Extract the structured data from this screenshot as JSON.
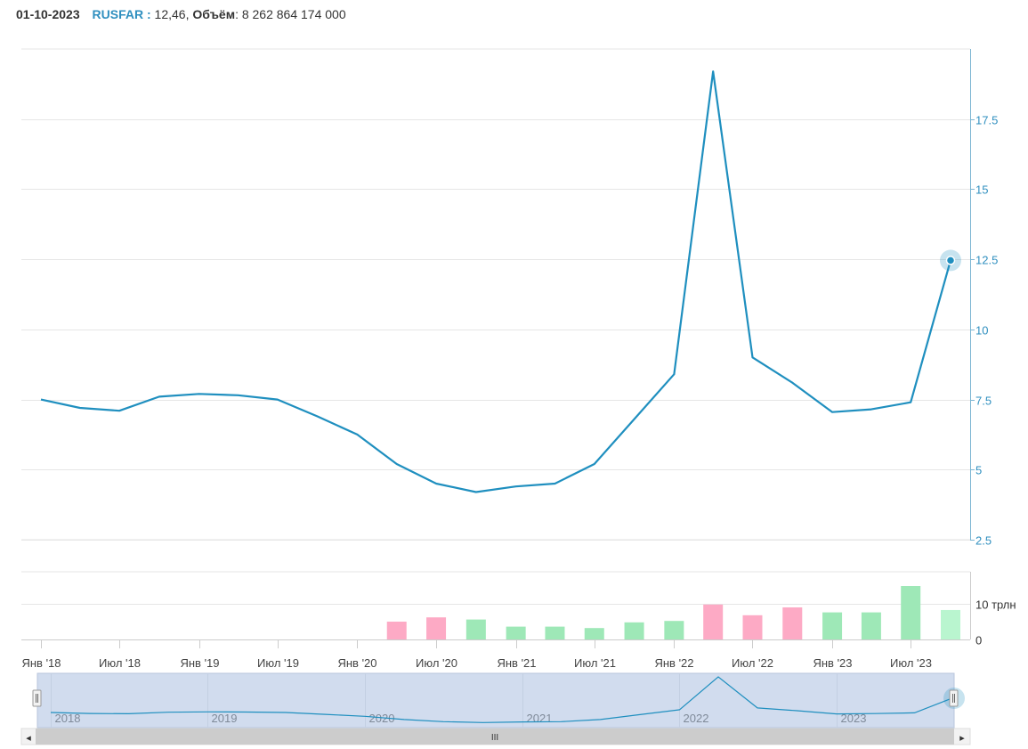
{
  "header": {
    "date": "01-10-2023",
    "ticker": "RUSFAR :",
    "value": "12,46,",
    "volume_label": "Объём",
    "volume_value": ": 8 262 864 174 000"
  },
  "colors": {
    "line": "#1f8fbf",
    "vol_up": "#9ee8b7",
    "vol_down": "#fdaac5",
    "vol_last": "#b9f5cf",
    "navigator_fill": "#d1dcee"
  },
  "chart_data": [
    {
      "type": "line",
      "name": "price",
      "x": [
        "2018-01",
        "2018-04",
        "2018-07",
        "2018-10",
        "2019-01",
        "2019-04",
        "2019-07",
        "2019-10",
        "2020-01",
        "2020-04",
        "2020-07",
        "2020-10",
        "2021-01",
        "2021-04",
        "2021-07",
        "2021-10",
        "2022-01",
        "2022-04",
        "2022-07",
        "2022-10",
        "2023-01",
        "2023-04",
        "2023-07",
        "2023-10"
      ],
      "values": [
        7.5,
        7.2,
        7.1,
        7.6,
        7.7,
        7.65,
        7.5,
        6.9,
        6.25,
        5.2,
        4.5,
        4.2,
        4.4,
        4.5,
        5.2,
        6.8,
        8.4,
        19.2,
        9.0,
        8.1,
        7.05,
        7.15,
        7.4,
        12.46
      ],
      "ylim": [
        2.5,
        20
      ],
      "yticks": [
        "2.5",
        "5",
        "7.5",
        "10",
        "12.5",
        "15",
        "17.5"
      ],
      "ytick_values": [
        2.5,
        5,
        7.5,
        10,
        12.5,
        15,
        17.5
      ]
    },
    {
      "type": "bar",
      "name": "volume",
      "x": [
        "2020-04",
        "2020-07",
        "2020-10",
        "2021-01",
        "2021-04",
        "2021-07",
        "2021-10",
        "2022-01",
        "2022-04",
        "2022-07",
        "2022-10",
        "2023-01",
        "2023-04",
        "2023-07",
        "2023-10"
      ],
      "values": [
        5.0,
        6.2,
        5.6,
        3.6,
        3.6,
        3.2,
        4.8,
        5.2,
        9.8,
        6.8,
        9.0,
        7.6,
        7.6,
        15.0,
        8.26
      ],
      "direction": [
        "down",
        "down",
        "up",
        "up",
        "up",
        "up",
        "up",
        "up",
        "down",
        "down",
        "down",
        "up",
        "up",
        "up",
        "up-last"
      ],
      "unit": "трлн",
      "ylim": [
        0,
        19
      ],
      "yticks": [
        "0",
        "10 трлн"
      ],
      "ytick_values": [
        0,
        10
      ]
    }
  ],
  "x_axis": {
    "ticks": [
      "Янв '18",
      "Июл '18",
      "Янв '19",
      "Июл '19",
      "Янв '20",
      "Июл '20",
      "Янв '21",
      "Июл '21",
      "Янв '22",
      "Июл '22",
      "Янв '23",
      "Июл '23"
    ],
    "tick_dates": [
      "2018-01",
      "2018-07",
      "2019-01",
      "2019-07",
      "2020-01",
      "2020-07",
      "2021-01",
      "2021-07",
      "2022-01",
      "2022-07",
      "2023-01",
      "2023-07"
    ]
  },
  "navigator": {
    "year_labels": [
      "2018",
      "2019",
      "2020",
      "2021",
      "2022",
      "2023"
    ],
    "year_dates": [
      "2018-01",
      "2019-01",
      "2020-01",
      "2021-01",
      "2022-01",
      "2023-01"
    ],
    "scrollbar_grip": "III",
    "left_arrow": "◂",
    "right_arrow": "▸"
  }
}
